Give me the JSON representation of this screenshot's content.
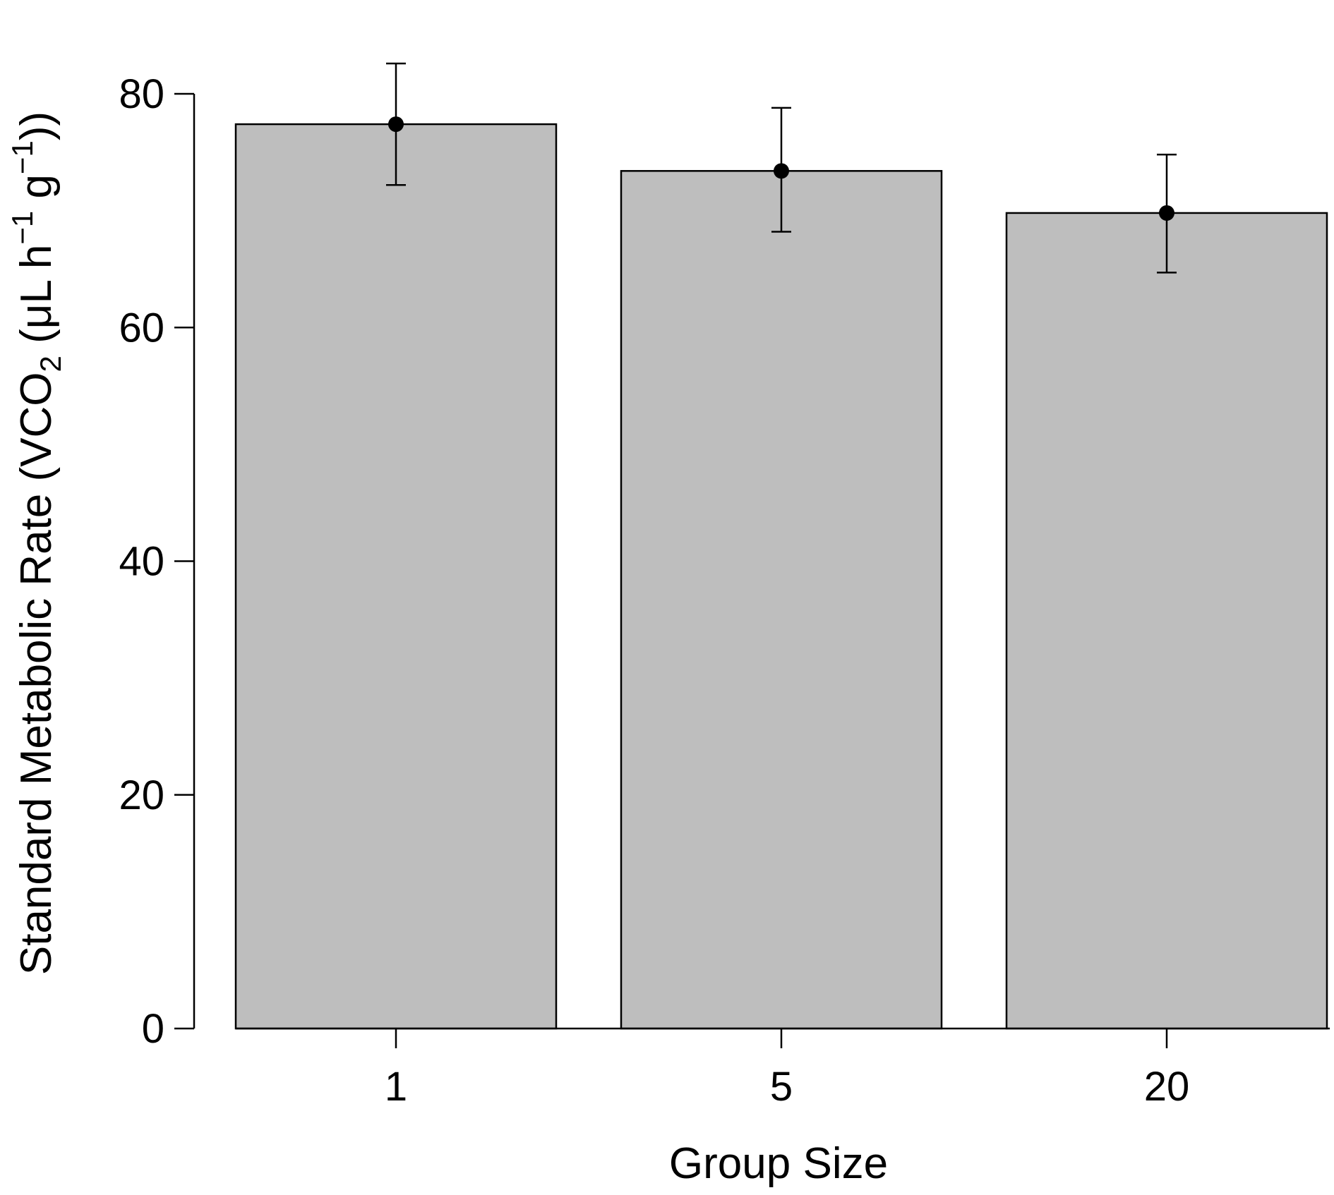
{
  "chart_data": {
    "type": "bar",
    "categories": [
      "1",
      "5",
      "20"
    ],
    "values": [
      77.4,
      73.4,
      69.8
    ],
    "error_low": [
      72.2,
      68.2,
      64.7
    ],
    "error_high": [
      82.6,
      78.8,
      74.8
    ],
    "title": "",
    "xlabel": "Group Size",
    "ylabel": {
      "main": "Standard Metabolic Rate (VCO",
      "sub": "2",
      "unit_open": " (μL h",
      "exp1": "−1",
      "unit_mid": " g",
      "exp2": "−1",
      "unit_close": "))"
    },
    "ylim": [
      0,
      80
    ],
    "yticks": [
      "0",
      "20",
      "40",
      "60",
      "80"
    ],
    "grid": false,
    "legend": "none",
    "colors": {
      "bar_fill": "#bebebe",
      "bar_stroke": "#000000",
      "error": "#000000",
      "point": "#000000",
      "axis": "#000000"
    }
  }
}
